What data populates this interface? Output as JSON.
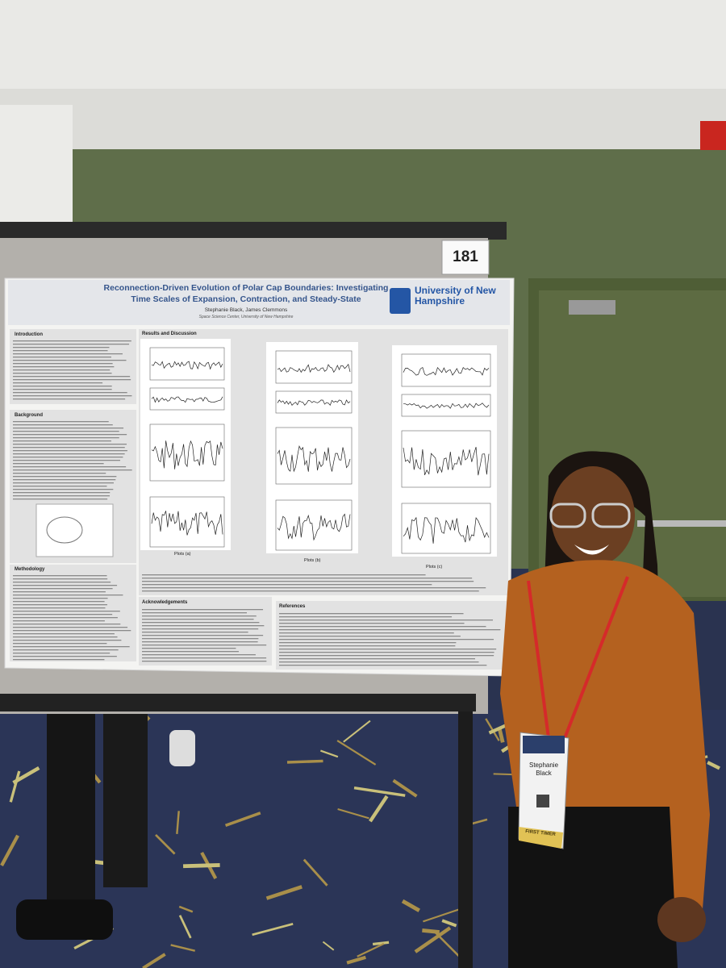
{
  "sign": {
    "booth_number": "181"
  },
  "poster": {
    "title": "Reconnection-Driven Evolution of Polar Cap Boundaries: Investigating Time Scales of Expansion, Contraction, and Steady-State",
    "authors": "Stephanie Black, James Clemmons",
    "affiliation": "Space Science Center, University of New Hampshire",
    "logo": "University of New Hampshire",
    "sections": [
      "Introduction",
      "Background",
      "Methodology",
      "Results and Discussion",
      "Acknowledgements",
      "References"
    ],
    "plot_captions": [
      "Plots (a)",
      "Plots (b)",
      "Plots (c)"
    ]
  },
  "badge": {
    "name": "Stephanie Black",
    "ribbon": "FIRST TIMER"
  }
}
